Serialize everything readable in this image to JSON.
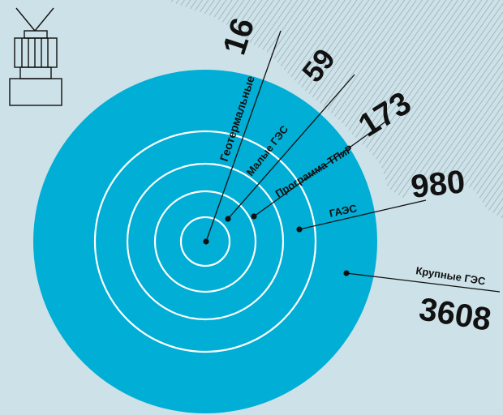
{
  "colors": {
    "background": "#cde2e8",
    "disc": "#00aed6",
    "rings": "#ffffff",
    "hatch": "#8fa3aa",
    "ink": "#111111"
  },
  "icon": "hydro-turbine-icon",
  "chart_data": {
    "type": "concentric-circles",
    "categories": [
      "Геотермальные",
      "Малые ГЭС",
      "Программа ТПиР",
      "ГАЭС",
      "Крупные ГЭС"
    ],
    "values": [
      16,
      59,
      173,
      980,
      3608
    ],
    "value_labels": [
      "16",
      "59",
      "173",
      "980",
      "3608"
    ]
  }
}
